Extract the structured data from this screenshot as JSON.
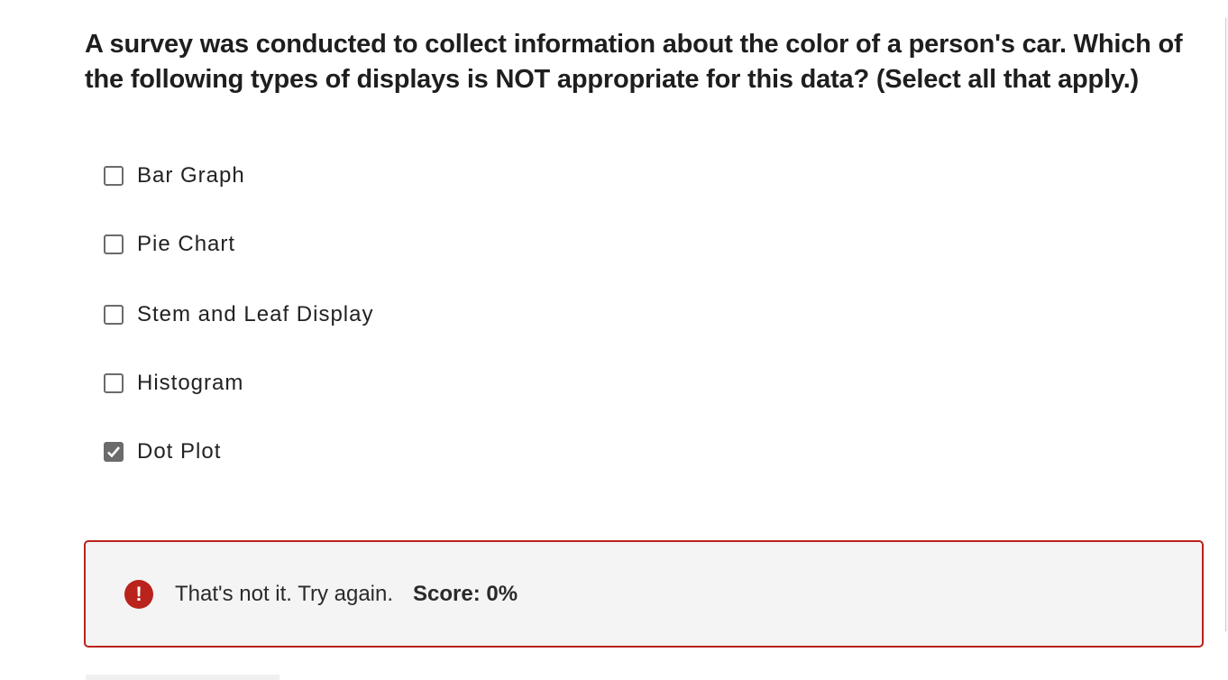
{
  "question": {
    "text": "A survey was conducted to collect information about the color of a person's car. Which of the following types of displays is NOT appropriate for this data? (Select all that apply.)"
  },
  "options": [
    {
      "label": "Bar Graph",
      "checked": false
    },
    {
      "label": "Pie Chart",
      "checked": false
    },
    {
      "label": "Stem and Leaf Display",
      "checked": false
    },
    {
      "label": "Histogram",
      "checked": false
    },
    {
      "label": "Dot Plot",
      "checked": true
    }
  ],
  "feedback": {
    "icon": "exclamation-circle-icon",
    "message": "That's not it. Try again.",
    "score": "Score: 0%",
    "color": "#b9231c"
  }
}
